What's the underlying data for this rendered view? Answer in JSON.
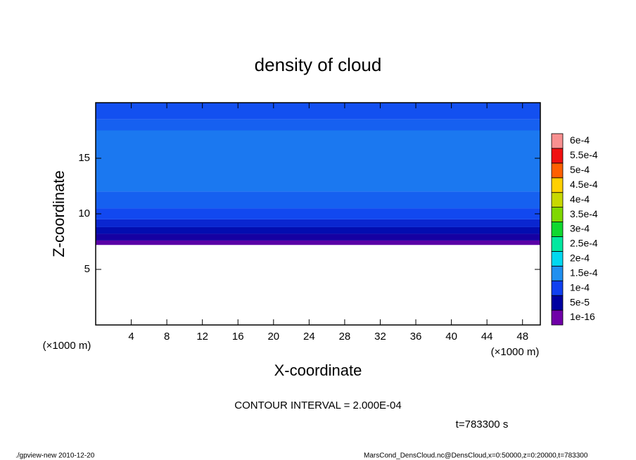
{
  "chart_data": {
    "type": "contour",
    "title": "density of cloud",
    "xlabel": "X-coordinate",
    "ylabel": "Z-coordinate",
    "x_unit": "(×1000 m)",
    "y_unit": "(×1000 m)",
    "xlim": [
      0,
      50
    ],
    "ylim": [
      0,
      20
    ],
    "xticks": [
      4,
      8,
      12,
      16,
      20,
      24,
      28,
      32,
      36,
      40,
      44,
      48
    ],
    "yticks": [
      5,
      10,
      15
    ],
    "z_bins": [
      7.2,
      7.6,
      8.2,
      8.8,
      9.5,
      10.5,
      12,
      17.5,
      18.5,
      20
    ],
    "values": [
      1e-05,
      4e-05,
      6e-05,
      8e-05,
      0.000105,
      0.00012,
      0.000135,
      0.00012,
      0.00011
    ],
    "colorbar": {
      "levels": [
        {
          "value": 1e-16,
          "label": "1e-16"
        },
        {
          "value": 5e-05,
          "label": "5e-5"
        },
        {
          "value": 0.0001,
          "label": "1e-4"
        },
        {
          "value": 0.00015,
          "label": "1.5e-4"
        },
        {
          "value": 0.0002,
          "label": "2e-4"
        },
        {
          "value": 0.00025,
          "label": "2.5e-4"
        },
        {
          "value": 0.0003,
          "label": "3e-4"
        },
        {
          "value": 0.00035,
          "label": "3.5e-4"
        },
        {
          "value": 0.0004,
          "label": "4e-4"
        },
        {
          "value": 0.00045,
          "label": "4.5e-4"
        },
        {
          "value": 0.0005,
          "label": "5e-4"
        },
        {
          "value": 0.00055,
          "label": "5.5e-4"
        },
        {
          "value": 0.0006,
          "label": "6e-4"
        }
      ],
      "colors": [
        "#7000a8",
        "#0000a0",
        "#1040f0",
        "#2090f0",
        "#00d8f0",
        "#00e8a0",
        "#10d830",
        "#80d800",
        "#c8d800",
        "#ffd000",
        "#ff6000",
        "#f01010",
        "#f89090"
      ]
    },
    "contour_interval": "CONTOUR INTERVAL = 2.000E-04",
    "time_label": "t=783300 s",
    "footer_left": "./gpview-new   2010-12-20",
    "footer_right": "MarsCond_DensCloud.nc@DensCloud,x=0:50000,z=0:20000,t=783300"
  }
}
